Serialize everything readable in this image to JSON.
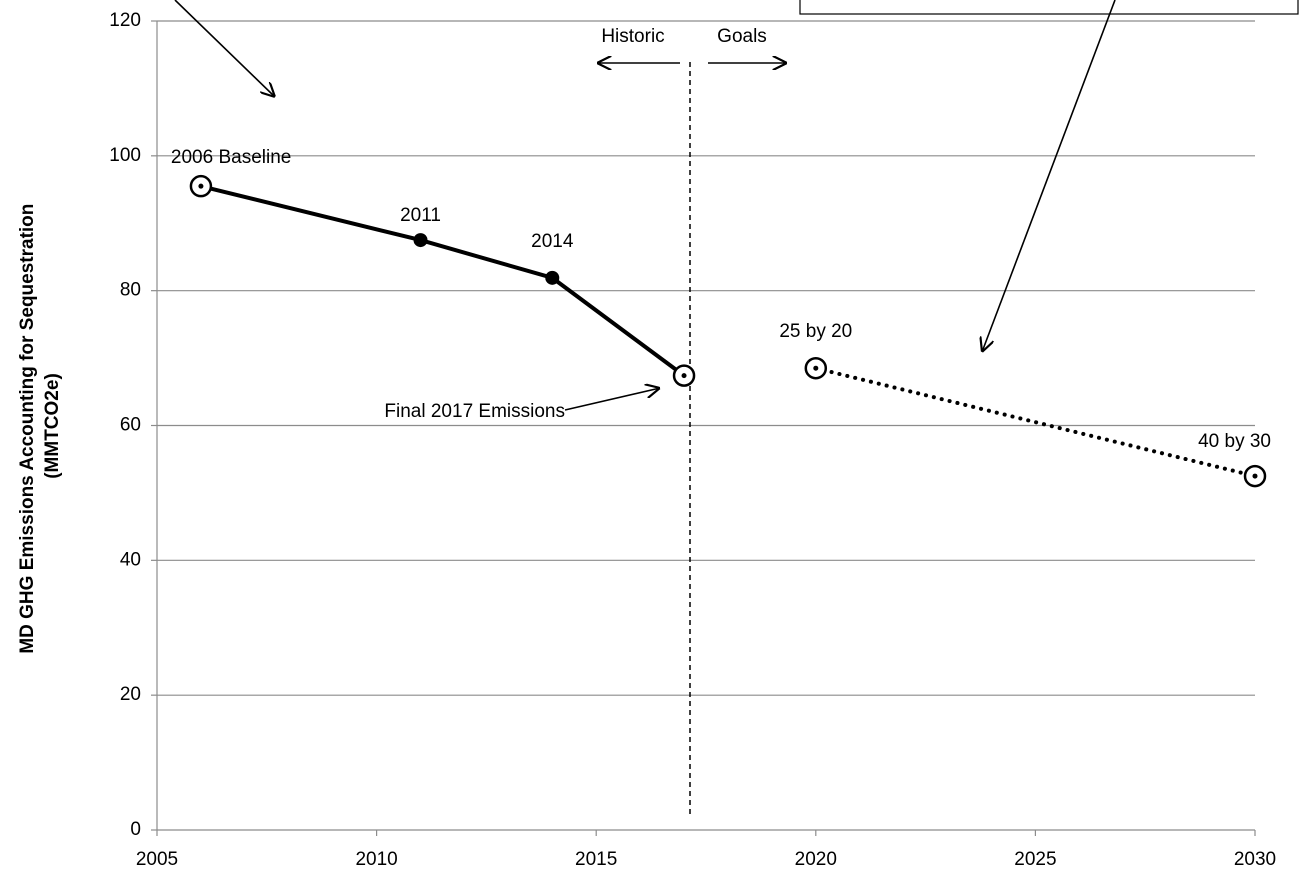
{
  "chart_data": {
    "type": "line",
    "ylabel": [
      "MD GHG Emissions Accounting for Sequestration",
      "(MMTCO2e)"
    ],
    "xlim": [
      2005,
      2030
    ],
    "xticks": [
      2005,
      2010,
      2015,
      2020,
      2025,
      2030
    ],
    "ylim": [
      0,
      120
    ],
    "yticks": [
      0,
      20,
      40,
      60,
      80,
      100,
      120
    ],
    "grid": true,
    "series": [
      {
        "x": [
          2006,
          2011,
          2014,
          2017
        ],
        "values": [
          95.5,
          87.5,
          81.9,
          67.4
        ],
        "labels": [
          "2006 Baseline",
          "2011",
          "2014",
          null
        ],
        "markers": [
          "open",
          "filled",
          "filled",
          "open"
        ],
        "style": "solid",
        "color": "#000000"
      },
      {
        "x": [
          2020,
          2030
        ],
        "values": [
          68.5,
          52.5
        ],
        "labels": [
          "25 by 20",
          "40 by 30"
        ],
        "markers": [
          "open",
          "open"
        ],
        "style": "dotted",
        "color": "#000000"
      }
    ],
    "annotations": [
      "Final 2017 Emissions",
      "Historic",
      "Goals"
    ]
  }
}
